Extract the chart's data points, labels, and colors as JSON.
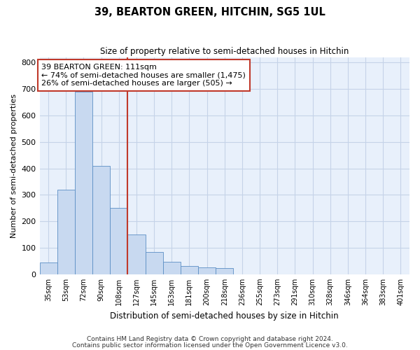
{
  "title": "39, BEARTON GREEN, HITCHIN, SG5 1UL",
  "subtitle": "Size of property relative to semi-detached houses in Hitchin",
  "xlabel": "Distribution of semi-detached houses by size in Hitchin",
  "ylabel": "Number of semi-detached properties",
  "footnote1": "Contains HM Land Registry data © Crown copyright and database right 2024.",
  "footnote2": "Contains public sector information licensed under the Open Government Licence v3.0.",
  "bar_color": "#c8d9f0",
  "bar_edge_color": "#5b8ec4",
  "highlight_color": "#c0392b",
  "annotation_line1": "39 BEARTON GREEN: 111sqm",
  "annotation_line2": "← 74% of semi-detached houses are smaller (1,475)",
  "annotation_line3": "26% of semi-detached houses are larger (505) →",
  "categories": [
    "35sqm",
    "53sqm",
    "72sqm",
    "90sqm",
    "108sqm",
    "127sqm",
    "145sqm",
    "163sqm",
    "181sqm",
    "200sqm",
    "218sqm",
    "236sqm",
    "255sqm",
    "273sqm",
    "291sqm",
    "310sqm",
    "328sqm",
    "346sqm",
    "364sqm",
    "383sqm",
    "401sqm"
  ],
  "values": [
    45,
    320,
    690,
    410,
    250,
    150,
    85,
    48,
    30,
    25,
    22,
    0,
    0,
    0,
    0,
    0,
    0,
    0,
    0,
    0,
    0
  ],
  "ylim": [
    0,
    820
  ],
  "yticks": [
    0,
    100,
    200,
    300,
    400,
    500,
    600,
    700,
    800
  ],
  "bg_color": "#e8f0fb",
  "grid_color": "#d0daea",
  "vline_x_index": 4,
  "fig_width": 6.0,
  "fig_height": 5.0,
  "dpi": 100
}
